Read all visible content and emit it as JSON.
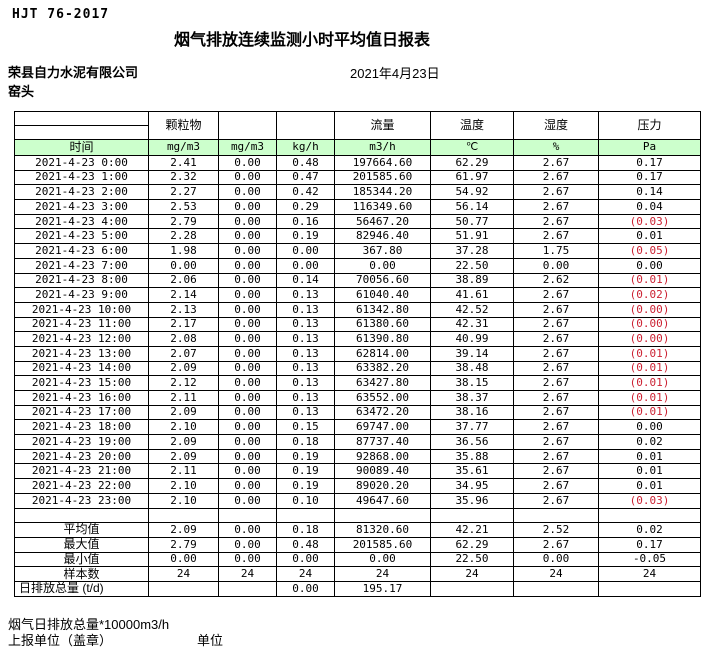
{
  "meta": {
    "doc_code": "HJT 76-2017",
    "title": "烟气排放连续监测小时平均值日报表",
    "company": "荣县自力水泥有限公司",
    "location": "窑头",
    "date": "2021年4月23日"
  },
  "colors": {
    "header_green": "#ccffcc",
    "negative_red": "#cc2233"
  },
  "table": {
    "header": {
      "groups": [
        "颗粒物",
        "",
        "",
        "流量",
        "温度",
        "湿度",
        "压力"
      ],
      "time_label": "时间",
      "units": [
        "mg/m3",
        "mg/m3",
        "kg/h",
        "m3/h",
        "℃",
        "%",
        "Pa"
      ]
    },
    "rows": [
      {
        "time": "2021-4-23 0:00",
        "values": [
          "2.41",
          "0.00",
          "0.48",
          "197664.60",
          "62.29",
          "2.67",
          "0.17"
        ]
      },
      {
        "time": "2021-4-23 1:00",
        "values": [
          "2.32",
          "0.00",
          "0.47",
          "201585.60",
          "61.97",
          "2.67",
          "0.17"
        ]
      },
      {
        "time": "2021-4-23 2:00",
        "values": [
          "2.27",
          "0.00",
          "0.42",
          "185344.20",
          "54.92",
          "2.67",
          "0.14"
        ]
      },
      {
        "time": "2021-4-23 3:00",
        "values": [
          "2.53",
          "0.00",
          "0.29",
          "116349.60",
          "56.14",
          "2.67",
          "0.04"
        ]
      },
      {
        "time": "2021-4-23 4:00",
        "values": [
          "2.79",
          "0.00",
          "0.16",
          "56467.20",
          "50.77",
          "2.67",
          "(0.03)"
        ]
      },
      {
        "time": "2021-4-23 5:00",
        "values": [
          "2.28",
          "0.00",
          "0.19",
          "82946.40",
          "51.91",
          "2.67",
          "0.01"
        ]
      },
      {
        "time": "2021-4-23 6:00",
        "values": [
          "1.98",
          "0.00",
          "0.00",
          "367.80",
          "37.28",
          "1.75",
          "(0.05)"
        ]
      },
      {
        "time": "2021-4-23 7:00",
        "values": [
          "0.00",
          "0.00",
          "0.00",
          "0.00",
          "22.50",
          "0.00",
          "0.00"
        ]
      },
      {
        "time": "2021-4-23 8:00",
        "values": [
          "2.06",
          "0.00",
          "0.14",
          "70056.60",
          "38.89",
          "2.62",
          "(0.01)"
        ]
      },
      {
        "time": "2021-4-23 9:00",
        "values": [
          "2.14",
          "0.00",
          "0.13",
          "61040.40",
          "41.61",
          "2.67",
          "(0.02)"
        ]
      },
      {
        "time": "2021-4-23 10:00",
        "values": [
          "2.13",
          "0.00",
          "0.13",
          "61342.80",
          "42.52",
          "2.67",
          "(0.00)"
        ]
      },
      {
        "time": "2021-4-23 11:00",
        "values": [
          "2.17",
          "0.00",
          "0.13",
          "61380.60",
          "42.31",
          "2.67",
          "(0.00)"
        ]
      },
      {
        "time": "2021-4-23 12:00",
        "values": [
          "2.08",
          "0.00",
          "0.13",
          "61390.80",
          "40.99",
          "2.67",
          "(0.00)"
        ]
      },
      {
        "time": "2021-4-23 13:00",
        "values": [
          "2.07",
          "0.00",
          "0.13",
          "62814.00",
          "39.14",
          "2.67",
          "(0.01)"
        ]
      },
      {
        "time": "2021-4-23 14:00",
        "values": [
          "2.09",
          "0.00",
          "0.13",
          "63382.20",
          "38.48",
          "2.67",
          "(0.01)"
        ]
      },
      {
        "time": "2021-4-23 15:00",
        "values": [
          "2.12",
          "0.00",
          "0.13",
          "63427.80",
          "38.15",
          "2.67",
          "(0.01)"
        ]
      },
      {
        "time": "2021-4-23 16:00",
        "values": [
          "2.11",
          "0.00",
          "0.13",
          "63552.00",
          "38.37",
          "2.67",
          "(0.01)"
        ]
      },
      {
        "time": "2021-4-23 17:00",
        "values": [
          "2.09",
          "0.00",
          "0.13",
          "63472.20",
          "38.16",
          "2.67",
          "(0.01)"
        ]
      },
      {
        "time": "2021-4-23 18:00",
        "values": [
          "2.10",
          "0.00",
          "0.15",
          "69747.00",
          "37.77",
          "2.67",
          "0.00"
        ]
      },
      {
        "time": "2021-4-23 19:00",
        "values": [
          "2.09",
          "0.00",
          "0.18",
          "87737.40",
          "36.56",
          "2.67",
          "0.02"
        ]
      },
      {
        "time": "2021-4-23 20:00",
        "values": [
          "2.09",
          "0.00",
          "0.19",
          "92868.00",
          "35.88",
          "2.67",
          "0.01"
        ]
      },
      {
        "time": "2021-4-23 21:00",
        "values": [
          "2.11",
          "0.00",
          "0.19",
          "90089.40",
          "35.61",
          "2.67",
          "0.01"
        ]
      },
      {
        "time": "2021-4-23 22:00",
        "values": [
          "2.10",
          "0.00",
          "0.19",
          "89020.20",
          "34.95",
          "2.67",
          "0.01"
        ]
      },
      {
        "time": "2021-4-23 23:00",
        "values": [
          "2.10",
          "0.00",
          "0.10",
          "49647.60",
          "35.96",
          "2.67",
          "(0.03)"
        ]
      }
    ],
    "summary_rows": [
      {
        "label": "平均值",
        "values": [
          "2.09",
          "0.00",
          "0.18",
          "81320.60",
          "42.21",
          "2.52",
          "0.02"
        ]
      },
      {
        "label": "最大值",
        "values": [
          "2.79",
          "0.00",
          "0.48",
          "201585.60",
          "62.29",
          "2.67",
          "0.17"
        ]
      },
      {
        "label": "最小值",
        "values": [
          "0.00",
          "0.00",
          "0.00",
          "0.00",
          "22.50",
          "0.00",
          "-0.05"
        ]
      },
      {
        "label": "样本数",
        "values": [
          "24",
          "24",
          "24",
          "24",
          "24",
          "24",
          "24"
        ]
      },
      {
        "label": "日排放总量 (t/d)",
        "label_align": "left",
        "values": [
          "",
          "",
          "0.00",
          "195.17",
          "",
          "",
          ""
        ]
      }
    ]
  },
  "footer": {
    "note": "烟气日排放总量*10000m3/h",
    "report_unit": "上报单位（盖章）",
    "unit_label": "单位"
  }
}
